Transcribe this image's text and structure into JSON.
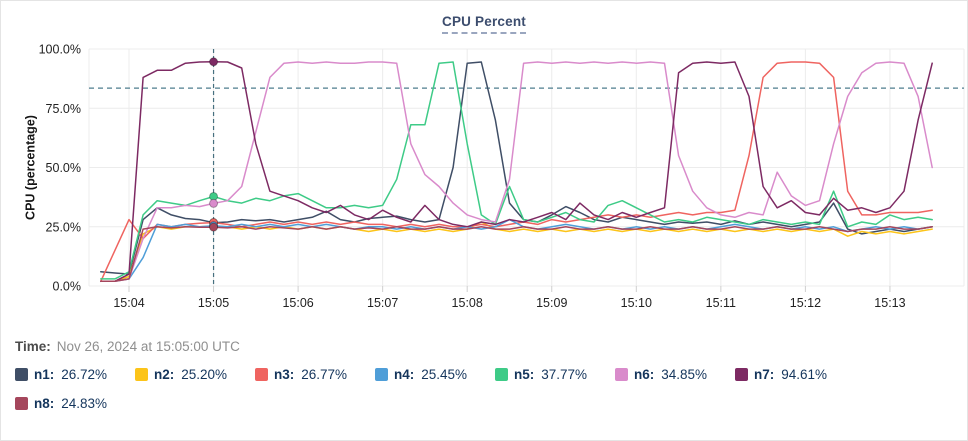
{
  "title": "CPU Percent",
  "time_row": {
    "label": "Time:",
    "value": "Nov 26, 2024 at 15:05:00 UTC"
  },
  "chart_data": {
    "type": "line",
    "title": "CPU Percent",
    "xlabel": "",
    "ylabel": "CPU (percentage)",
    "ylim": [
      0,
      100
    ],
    "grid": true,
    "y_ticks": [
      {
        "label": "100.0%",
        "value": 100
      },
      {
        "label": "75.0%",
        "value": 75
      },
      {
        "label": "50.0%",
        "value": 50
      },
      {
        "label": "25.0%",
        "value": 25
      },
      {
        "label": "0.0%",
        "value": 0
      }
    ],
    "x_ticks": [
      {
        "label": "15:04",
        "offset_sec": 0
      },
      {
        "label": "15:05",
        "offset_sec": 60
      },
      {
        "label": "15:06",
        "offset_sec": 120
      },
      {
        "label": "15:07",
        "offset_sec": 180
      },
      {
        "label": "15:08",
        "offset_sec": 240
      },
      {
        "label": "15:09",
        "offset_sec": 300
      },
      {
        "label": "15:10",
        "offset_sec": 360
      },
      {
        "label": "15:11",
        "offset_sec": 420
      },
      {
        "label": "15:12",
        "offset_sec": 480
      },
      {
        "label": "15:13",
        "offset_sec": 540
      }
    ],
    "threshold_value": 83.5,
    "crosshair_offset_sec": 60,
    "crosshair_label": "15:05",
    "x_start_sec": -20,
    "x_step_sec": 10,
    "marker_index": 8,
    "series": [
      {
        "name": "n1",
        "color": "#3f4e66",
        "values": [
          6,
          5.5,
          5,
          28,
          33,
          30,
          28.5,
          28,
          26.72,
          27,
          28,
          27.5,
          28,
          27,
          28,
          29,
          31.5,
          28,
          27,
          28.5,
          29,
          29.5,
          28,
          27,
          28,
          50,
          94,
          94.5,
          70,
          35,
          28,
          27,
          30,
          33.5,
          31,
          28,
          27,
          29,
          28,
          27,
          26,
          27,
          26.5,
          27,
          26,
          27.5,
          26,
          27,
          26,
          25,
          26,
          27,
          35,
          24,
          22,
          23,
          24,
          23,
          24,
          25
        ]
      },
      {
        "name": "n2",
        "color": "#fcc419",
        "values": [
          2,
          2,
          4,
          22,
          25,
          24,
          25,
          25,
          25.2,
          25,
          24,
          25,
          24,
          25,
          24,
          25,
          24,
          25,
          24,
          23,
          24,
          23,
          24,
          23,
          24,
          23,
          24,
          27,
          24,
          23,
          24,
          23,
          24,
          23,
          24,
          23,
          24,
          23,
          24,
          23,
          24,
          23,
          24,
          23,
          24,
          23,
          24,
          23,
          24,
          23,
          24,
          23,
          24,
          21,
          23,
          22,
          23,
          22,
          23,
          24
        ]
      },
      {
        "name": "n3",
        "color": "#ef6460",
        "values": [
          2,
          15,
          28,
          20,
          26,
          25,
          26,
          26.5,
          26.77,
          26,
          25,
          26,
          27,
          26,
          27,
          26,
          27,
          26,
          27,
          26,
          26,
          25,
          26,
          25,
          26,
          25,
          25,
          26,
          25,
          26,
          27,
          26,
          28,
          27,
          28,
          29,
          30,
          29,
          30,
          29,
          30,
          31,
          30,
          31,
          31,
          32,
          55,
          88,
          94,
          94.5,
          94.5,
          94,
          88,
          40,
          30,
          30,
          31,
          31,
          31,
          32
        ]
      },
      {
        "name": "n4",
        "color": "#4f9ed8",
        "values": [
          2,
          2,
          3,
          12,
          26,
          25,
          26,
          25,
          25.45,
          25,
          26,
          25,
          26,
          25,
          26,
          25,
          26,
          25,
          24,
          25,
          25,
          24,
          25,
          24,
          25,
          24,
          25,
          24,
          25,
          28,
          25,
          24,
          25,
          26,
          25,
          24,
          25,
          24,
          25,
          24,
          25,
          24,
          25,
          24,
          25,
          26,
          25,
          24,
          25,
          24,
          25,
          24,
          25,
          23,
          24,
          25,
          24,
          25,
          24,
          25
        ]
      },
      {
        "name": "n5",
        "color": "#3ecb87",
        "values": [
          3,
          3,
          6,
          30,
          36,
          35,
          34,
          36,
          37.77,
          36,
          35,
          37,
          36,
          38,
          39,
          36,
          33,
          33,
          34,
          33,
          34,
          45,
          68,
          68,
          94,
          94.5,
          60,
          30,
          26,
          42,
          28,
          27,
          29,
          31,
          28,
          27,
          34,
          36,
          33,
          30,
          27,
          28,
          27,
          29,
          28,
          27,
          26,
          28,
          27,
          26,
          27,
          26,
          40,
          25,
          27,
          26,
          30,
          28,
          29,
          28
        ]
      },
      {
        "name": "n6",
        "color": "#d98bcb",
        "values": [
          2,
          2,
          3,
          20,
          33,
          33,
          34,
          33.5,
          34.85,
          36,
          42,
          65,
          88,
          94,
          94.5,
          94,
          94.5,
          94,
          94,
          94.5,
          94.5,
          94,
          60,
          47,
          42,
          35,
          30,
          28,
          27,
          45,
          94,
          94.5,
          94,
          94.5,
          94,
          94.5,
          94,
          94.5,
          94,
          94.5,
          94,
          55,
          40,
          33,
          30,
          29,
          31,
          30,
          48,
          38,
          34,
          36,
          60,
          80,
          90,
          94,
          94.5,
          94,
          80,
          50
        ]
      },
      {
        "name": "n7",
        "color": "#7d2a63",
        "values": [
          2,
          2,
          5,
          88,
          91,
          91,
          94,
          94.5,
          94.61,
          94.5,
          92,
          60,
          40,
          38,
          36,
          33,
          31,
          34,
          30,
          28,
          32,
          29,
          27,
          34,
          28,
          26,
          25,
          27,
          26,
          28,
          27,
          29,
          31,
          28,
          35,
          30,
          28,
          31,
          29,
          31,
          33,
          90,
          94,
          94.5,
          94,
          94.5,
          80,
          42,
          33,
          36,
          31,
          30,
          37,
          32,
          33,
          31,
          33,
          40,
          70,
          94
        ]
      },
      {
        "name": "n8",
        "color": "#a5465c",
        "values": [
          2,
          2,
          3,
          24,
          25,
          24.5,
          25,
          24.8,
          24.83,
          24.5,
          25,
          24,
          25,
          24.5,
          24,
          25,
          24,
          25,
          24,
          24.5,
          24,
          25,
          24,
          24,
          25,
          24,
          24,
          25,
          24,
          24,
          25,
          24,
          24,
          25,
          24,
          24,
          25,
          24,
          24,
          25,
          24,
          24,
          25,
          24,
          24,
          25,
          24,
          24,
          25,
          24,
          24,
          25,
          24,
          23,
          24,
          24,
          25,
          24,
          24,
          25
        ]
      }
    ],
    "legend": [
      {
        "label": "n1:",
        "value": "26.72%",
        "color": "#3f4e66"
      },
      {
        "label": "n2:",
        "value": "25.20%",
        "color": "#fcc419"
      },
      {
        "label": "n3:",
        "value": "26.77%",
        "color": "#ef6460"
      },
      {
        "label": "n4:",
        "value": "25.45%",
        "color": "#4f9ed8"
      },
      {
        "label": "n5:",
        "value": "37.77%",
        "color": "#3ecb87"
      },
      {
        "label": "n6:",
        "value": "34.85%",
        "color": "#d98bcb"
      },
      {
        "label": "n7:",
        "value": "94.61%",
        "color": "#7d2a63"
      },
      {
        "label": "n8:",
        "value": "24.83%",
        "color": "#a5465c"
      }
    ],
    "colors": {
      "grid": "#ececec",
      "tick_stub": "#cfcfcf",
      "threshold_line": "#4e7d8e",
      "crosshair_line": "#46707f",
      "axis_text": "#222222",
      "title_text": "#3c4d6e"
    }
  }
}
